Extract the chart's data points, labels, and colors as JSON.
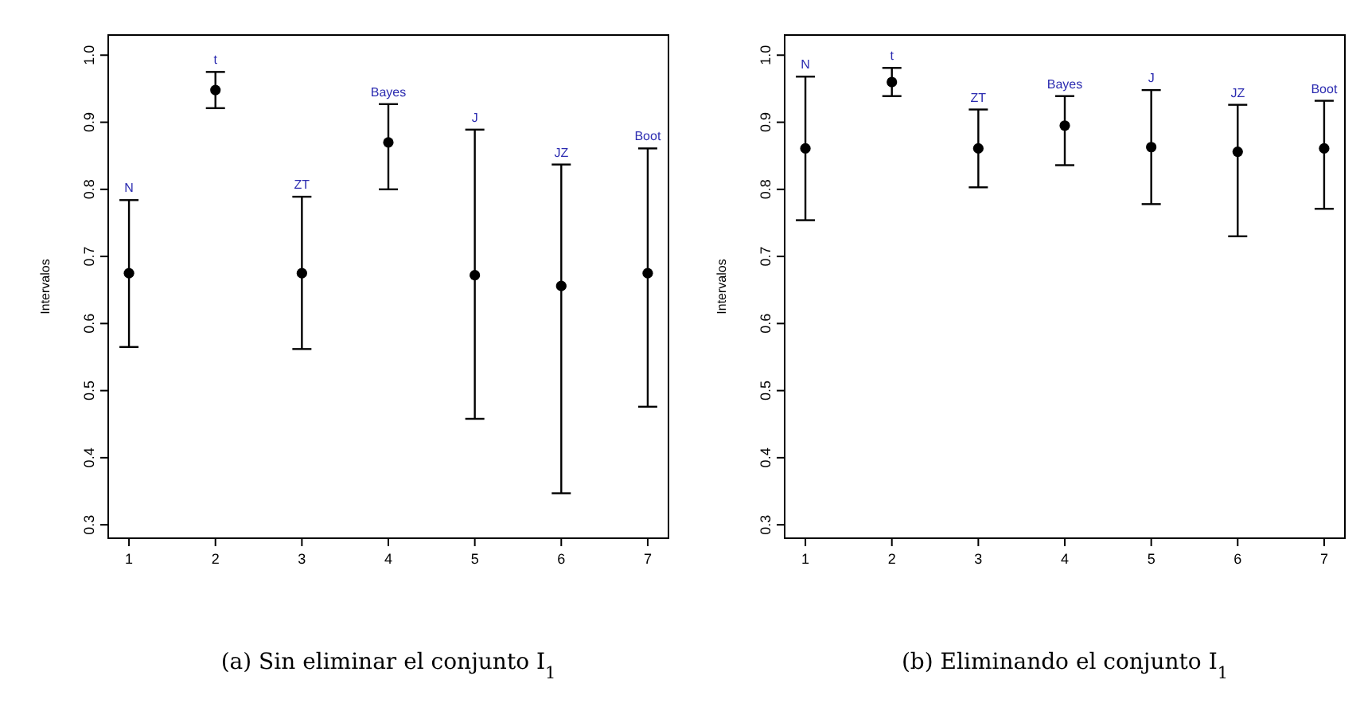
{
  "chart_data": [
    {
      "type": "scatter",
      "title": "(a) Sin eliminar el conjunto I$_{1}$",
      "ylabel": "Intervalos",
      "x": [
        1,
        2,
        3,
        4,
        5,
        6,
        7
      ],
      "marker": "circle",
      "grid": false,
      "series": [
        {
          "color": "#000000",
          "values": [
            0.675,
            0.948,
            0.675,
            0.87,
            0.672,
            0.656,
            0.675
          ],
          "errors": [
            [
              0.565,
              0.784
            ],
            [
              0.921,
              0.975
            ],
            [
              0.562,
              0.789
            ],
            [
              0.8,
              0.927
            ],
            [
              0.458,
              0.889
            ],
            [
              0.347,
              0.837
            ],
            [
              0.476,
              0.861
            ]
          ]
        }
      ],
      "annotations": [
        {
          "text": "N",
          "x": 1,
          "y": 0.784
        },
        {
          "text": "t",
          "x": 2,
          "y": 0.975
        },
        {
          "text": "ZT",
          "x": 3,
          "y": 0.789
        },
        {
          "text": "Bayes",
          "x": 4,
          "y": 0.927
        },
        {
          "text": "J",
          "x": 5,
          "y": 0.889
        },
        {
          "text": "JZ",
          "x": 6,
          "y": 0.837
        },
        {
          "text": "Boot",
          "x": 7,
          "y": 0.861
        }
      ],
      "xlim": [
        0.76,
        7.24
      ],
      "xticks": [
        1,
        2,
        3,
        4,
        5,
        6,
        7
      ],
      "ylim": [
        0.28,
        1.03
      ],
      "yticks": [
        0.3,
        0.4,
        0.5,
        0.6,
        0.7,
        0.8,
        0.9,
        {
          "value": 1,
          "label": "1.0"
        }
      ]
    },
    {
      "type": "scatter",
      "title": "(b) Eliminando el conjunto I$_{1}$",
      "ylabel": "Intervalos",
      "x": [
        1,
        2,
        3,
        4,
        5,
        6,
        7
      ],
      "marker": "circle",
      "grid": false,
      "series": [
        {
          "color": "#000000",
          "values": [
            0.861,
            0.96,
            0.861,
            0.895,
            0.863,
            0.856,
            0.861
          ],
          "errors": [
            [
              0.754,
              0.968
            ],
            [
              0.939,
              0.981
            ],
            [
              0.803,
              0.919
            ],
            [
              0.836,
              0.939
            ],
            [
              0.778,
              0.948
            ],
            [
              0.73,
              0.926
            ],
            [
              0.771,
              0.932
            ]
          ]
        }
      ],
      "annotations": [
        {
          "text": "N",
          "x": 1,
          "y": 0.968
        },
        {
          "text": "t",
          "x": 2,
          "y": 0.981
        },
        {
          "text": "ZT",
          "x": 3,
          "y": 0.919
        },
        {
          "text": "Bayes",
          "x": 4,
          "y": 0.939
        },
        {
          "text": "J",
          "x": 5,
          "y": 0.948
        },
        {
          "text": "JZ",
          "x": 6,
          "y": 0.926
        },
        {
          "text": "Boot",
          "x": 7,
          "y": 0.932
        }
      ],
      "xlim": [
        0.76,
        7.24
      ],
      "xticks": [
        1,
        2,
        3,
        4,
        5,
        6,
        7
      ],
      "ylim": [
        0.28,
        1.03
      ],
      "yticks": [
        0.3,
        0.4,
        0.5,
        0.6,
        0.7,
        0.8,
        0.9,
        {
          "value": 1,
          "label": "1.0"
        }
      ]
    }
  ]
}
